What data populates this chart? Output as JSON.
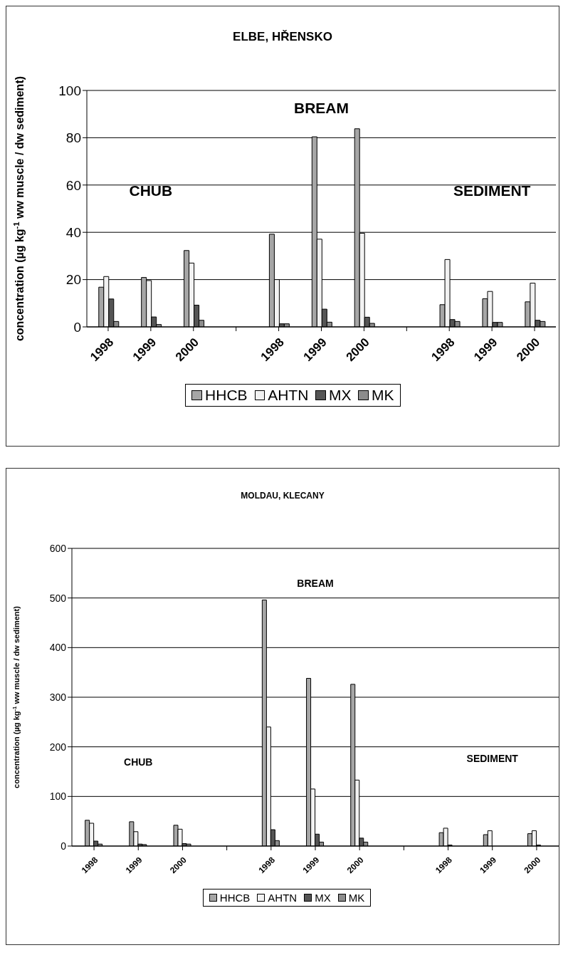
{
  "chart_data": [
    {
      "type": "bar",
      "title": "ELBE, HŘENSKO",
      "ylabel": "concentration (µg kg$^{-1}$ ww muscle / dw sediment)",
      "categories": [
        "1998",
        "1999",
        "2000",
        null,
        "1998",
        "1999",
        "2000",
        null,
        "1998",
        "1999",
        "2000"
      ],
      "series": [
        {
          "name": "HHCB",
          "color": "#a6a6a6",
          "values": [
            16.8,
            20.9,
            32.3,
            null,
            39.2,
            80.4,
            83.8,
            null,
            9.4,
            11.9,
            10.6
          ]
        },
        {
          "name": "AHTN",
          "color": "#f2f2f2",
          "values": [
            21.3,
            19.6,
            27,
            null,
            20,
            37.1,
            39.6,
            null,
            28.5,
            15,
            18.5
          ]
        },
        {
          "name": "MX",
          "color": "#555555",
          "values": [
            11.8,
            4.2,
            9.2,
            null,
            1.3,
            7.5,
            4.1,
            null,
            3.1,
            1.9,
            2.8
          ]
        },
        {
          "name": "MK",
          "color": "#8c8c8c",
          "values": [
            2.3,
            1,
            2.8,
            null,
            1.3,
            2,
            1.5,
            null,
            2.3,
            1.9,
            2.3
          ]
        }
      ],
      "annotations": [
        "CHUB",
        "BREAM",
        "SEDIMENT"
      ],
      "ylim": [
        0,
        100
      ],
      "yticks": [
        0,
        20,
        40,
        60,
        80,
        100
      ],
      "grid": "y",
      "legend": "bottom"
    },
    {
      "type": "bar",
      "title": "MOLDAU, KLECANY",
      "ylabel": "concentration (µg kg$^{-1}$ ww muscle / dw sediment)",
      "categories": [
        "1998",
        "1999",
        "2000",
        null,
        "1998",
        "1999",
        "2000",
        null,
        "1998",
        "1999",
        "2000"
      ],
      "series": [
        {
          "name": "HHCB",
          "color": "#a6a6a6",
          "values": [
            52,
            49,
            42,
            null,
            496,
            338,
            326,
            null,
            27,
            23,
            25
          ]
        },
        {
          "name": "AHTN",
          "color": "#f2f2f2",
          "values": [
            46,
            29,
            34,
            null,
            240,
            115,
            133,
            null,
            36,
            31,
            31
          ]
        },
        {
          "name": "MX",
          "color": "#555555",
          "values": [
            10,
            4,
            5,
            null,
            33,
            24,
            16,
            null,
            2,
            null,
            2
          ]
        },
        {
          "name": "MK",
          "color": "#8c8c8c",
          "values": [
            4,
            3,
            4,
            null,
            11,
            8,
            8,
            null,
            null,
            null,
            null
          ]
        }
      ],
      "annotations": [
        "CHUB",
        "BREAM",
        "SEDIMENT"
      ],
      "ylim": [
        0,
        600
      ],
      "yticks": [
        0,
        100,
        200,
        300,
        400,
        500,
        600
      ],
      "grid": "y",
      "legend": "bottom"
    }
  ]
}
